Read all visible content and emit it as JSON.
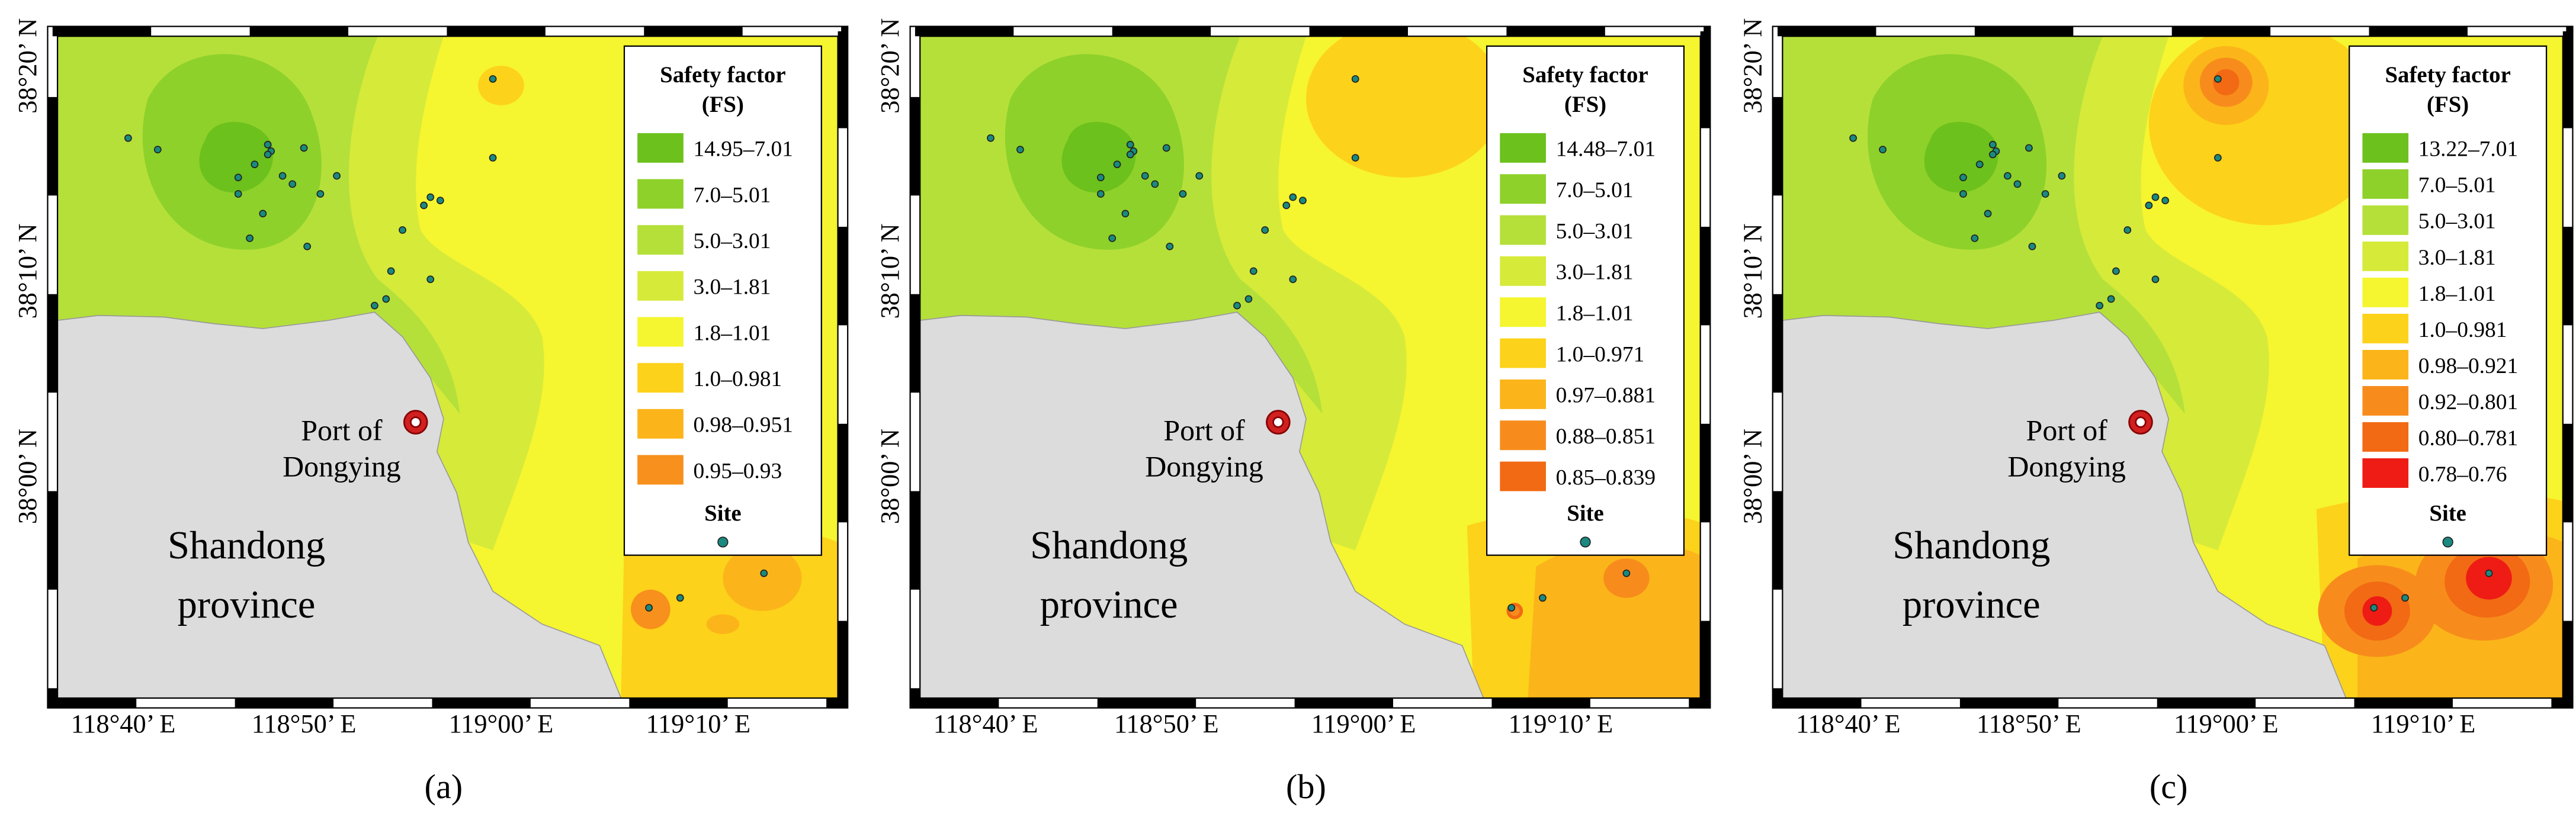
{
  "panels": [
    {
      "label": "(a)",
      "legend": {
        "title": "Safety factor",
        "subtitle": "(FS)",
        "site": "Site",
        "items": [
          {
            "label": "14.95–7.01",
            "color": "#6cc11c"
          },
          {
            "label": "7.0–5.01",
            "color": "#8ed12a"
          },
          {
            "label": "5.0–3.01",
            "color": "#b5e03a"
          },
          {
            "label": "3.0–1.81",
            "color": "#d6ea3a"
          },
          {
            "label": "1.8–1.01",
            "color": "#f5f530"
          },
          {
            "label": "1.0–0.981",
            "color": "#fdd21a"
          },
          {
            "label": "0.98–0.951",
            "color": "#fbb51a"
          },
          {
            "label": "0.95–0.93",
            "color": "#f7901c"
          }
        ]
      },
      "port": [
        "Port of",
        "Dongying"
      ],
      "province": [
        "Shandong",
        "province"
      ],
      "lon_ticks": [
        "118°40’ E",
        "118°50’ E",
        "119°00’ E",
        "119°10’ E"
      ],
      "lat_ticks": [
        "38°20’ N",
        "38°10’ N",
        "38°00’ N"
      ]
    },
    {
      "label": "(b)",
      "legend": {
        "title": "Safety factor",
        "subtitle": "(FS)",
        "site": "Site",
        "items": [
          {
            "label": "14.48–7.01",
            "color": "#6cc11c"
          },
          {
            "label": "7.0–5.01",
            "color": "#8ed12a"
          },
          {
            "label": "5.0–3.01",
            "color": "#b5e03a"
          },
          {
            "label": "3.0–1.81",
            "color": "#d6ea3a"
          },
          {
            "label": "1.8–1.01",
            "color": "#f5f530"
          },
          {
            "label": "1.0–0.971",
            "color": "#fdd21a"
          },
          {
            "label": "0.97–0.881",
            "color": "#fbb51a"
          },
          {
            "label": "0.88–0.851",
            "color": "#f78c1c"
          },
          {
            "label": "0.85–0.839",
            "color": "#f26a14"
          }
        ]
      },
      "port": [
        "Port of",
        "Dongying"
      ],
      "province": [
        "Shandong",
        "province"
      ],
      "lon_ticks": [
        "118°40’ E",
        "118°50’ E",
        "119°00’ E",
        "119°10’ E"
      ],
      "lat_ticks": [
        "38°20’ N",
        "38°10’ N",
        "38°00’ N"
      ]
    },
    {
      "label": "(c)",
      "legend": {
        "title": "Safety factor",
        "subtitle": "(FS)",
        "site": "Site",
        "items": [
          {
            "label": "13.22–7.01",
            "color": "#6cc11c"
          },
          {
            "label": "7.0–5.01",
            "color": "#8ed12a"
          },
          {
            "label": "5.0–3.01",
            "color": "#b5e03a"
          },
          {
            "label": "3.0–1.81",
            "color": "#d6ea3a"
          },
          {
            "label": "1.8–1.01",
            "color": "#f5f530"
          },
          {
            "label": "1.0–0.981",
            "color": "#fdd21a"
          },
          {
            "label": "0.98–0.921",
            "color": "#fbb51a"
          },
          {
            "label": "0.92–0.801",
            "color": "#f78c1c"
          },
          {
            "label": "0.80–0.781",
            "color": "#f26a14"
          },
          {
            "label": "0.78–0.76",
            "color": "#ee1c14"
          }
        ]
      },
      "port": [
        "Port of",
        "Dongying"
      ],
      "province": [
        "Shandong",
        "province"
      ],
      "lon_ticks": [
        "118°40’ E",
        "118°50’ E",
        "119°00’ E",
        "119°10’ E"
      ],
      "lat_ticks": [
        "38°20’ N",
        "38°10’ N",
        "38°00’ N"
      ]
    }
  ]
}
